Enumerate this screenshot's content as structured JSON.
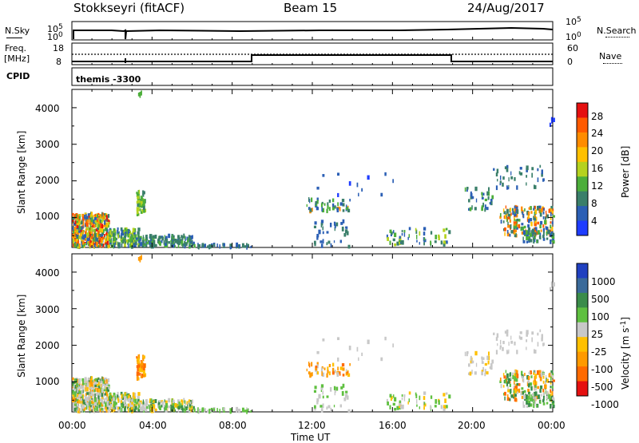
{
  "header": {
    "station": "Stokkseyri (fitACF)",
    "beam": "Beam 15",
    "date": "24/Aug/2017"
  },
  "left_labels": {
    "nsky": "N.Sky",
    "freq_line1": "Freq.",
    "freq_line2": "[MHz]",
    "cpid": "CPID"
  },
  "right_labels": {
    "nsearch": "N.Search",
    "nave": "Nave"
  },
  "strip_ticks": {
    "nsky_top": "10^5",
    "nsky_bottom": "10^0",
    "freq_top": "18",
    "freq_bottom": "8",
    "nave_top": "60",
    "nave_bottom": "0"
  },
  "cpid_text": "themis -3300",
  "x_axis": {
    "label": "Time UT",
    "ticks": [
      "00:00",
      "04:00",
      "08:00",
      "12:00",
      "16:00",
      "20:00",
      "00:00"
    ]
  },
  "chart_data": [
    {
      "type": "heatmap",
      "title": "Power",
      "ylabel": "Slant Range [km]",
      "xlabel": "",
      "x_range_hours": [
        0,
        24
      ],
      "y_range_km": [
        180,
        4500
      ],
      "y_ticks": [
        1000,
        2000,
        3000,
        4000
      ],
      "colorbar": {
        "label": "Power [dB]",
        "ticks": [
          "4",
          "8",
          "12",
          "16",
          "20",
          "24",
          "28"
        ],
        "colors": [
          "#1e3cff",
          "#2b5fb5",
          "#3a7f6a",
          "#4cae3a",
          "#b5d21e",
          "#ffc000",
          "#ff8c00",
          "#ff5a00",
          "#e51010"
        ]
      }
    },
    {
      "type": "heatmap",
      "title": "Velocity",
      "ylabel": "Slant Range [km]",
      "xlabel": "Time UT",
      "x_range_hours": [
        0,
        24
      ],
      "y_range_km": [
        180,
        4500
      ],
      "y_ticks": [
        1000,
        2000,
        3000,
        4000
      ],
      "colorbar": {
        "label": "Velocity [m s^-1]",
        "ticks": [
          "1000",
          "500",
          "100",
          "25",
          "-25",
          "-100",
          "-500",
          "-1000"
        ],
        "colors": [
          "#2040c0",
          "#3a6a9a",
          "#3a8c4a",
          "#5fc040",
          "#c8c8c8",
          "#ffc000",
          "#ff9a00",
          "#ff6a00",
          "#e51010"
        ]
      }
    }
  ]
}
